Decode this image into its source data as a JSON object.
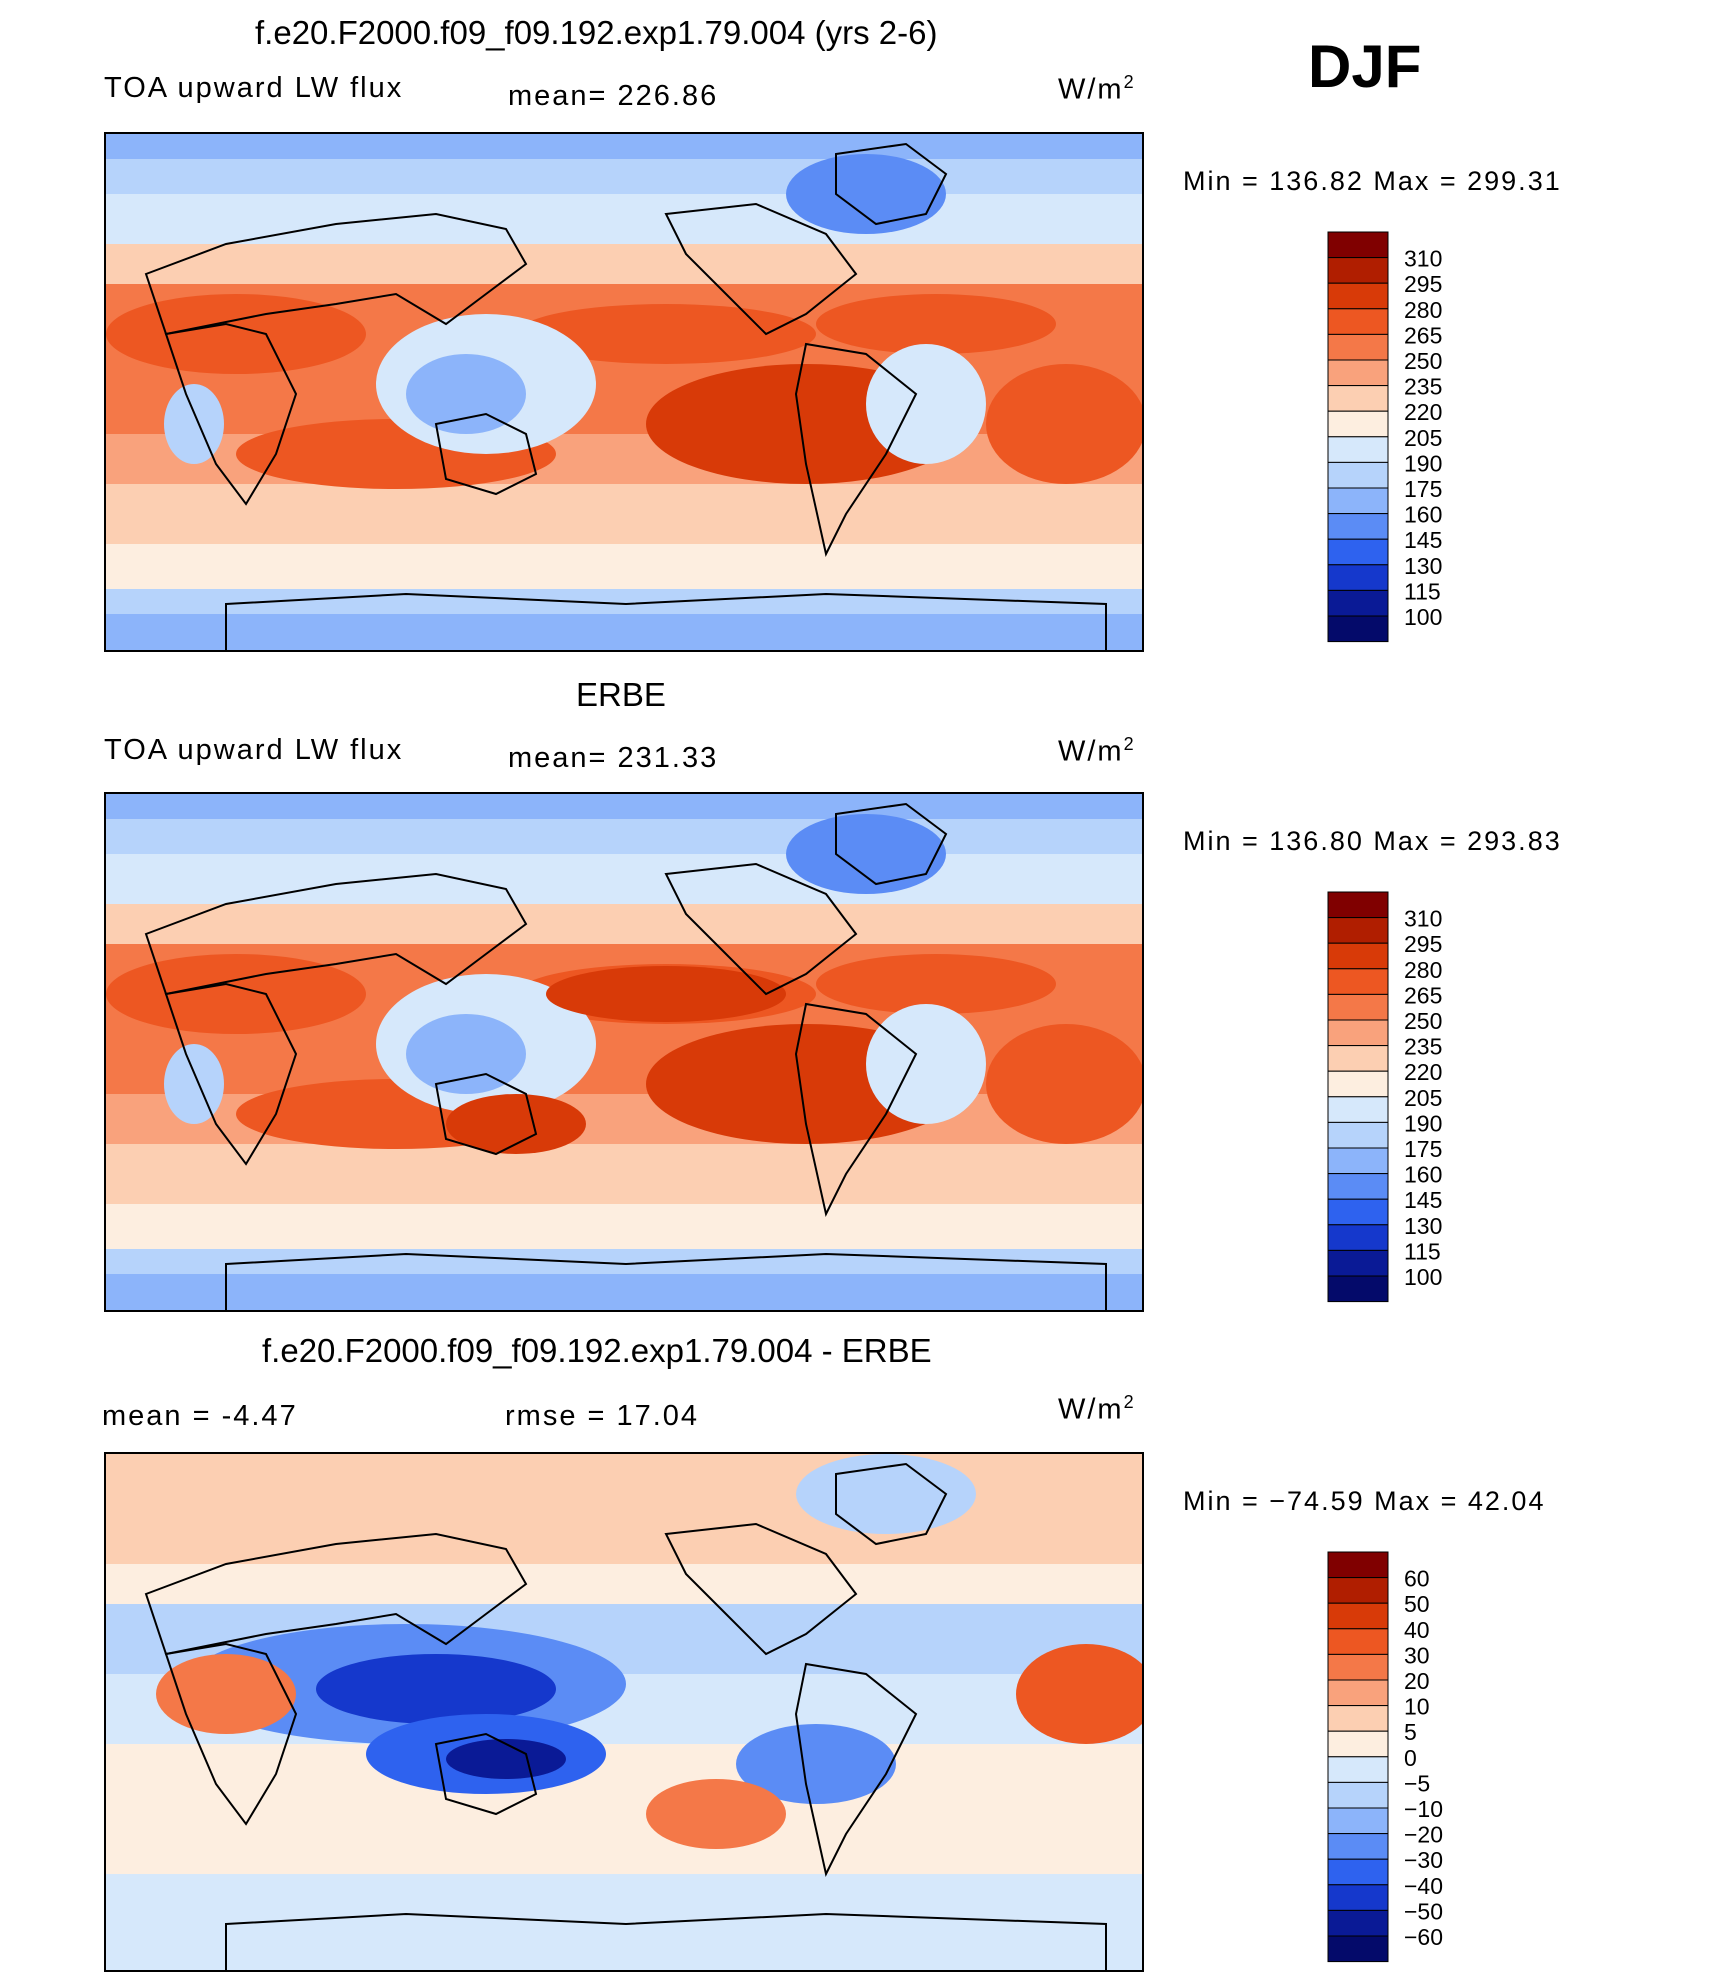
{
  "season": "DJF",
  "panels": [
    {
      "title": "f.e20.F2000.f09_f09.192.exp1.79.004 (yrs 2-6)",
      "left_label": "TOA upward LW flux",
      "mid_label": "mean= 226.86",
      "units_base": "W/m",
      "units_exp": "2",
      "minmax": "Min = 136.82 Max = 299.31",
      "kind": "abs"
    },
    {
      "title": "ERBE",
      "left_label": "TOA upward LW flux",
      "mid_label": "mean= 231.33",
      "units_base": "W/m",
      "units_exp": "2",
      "minmax": "Min = 136.80 Max = 293.83",
      "kind": "abs"
    },
    {
      "title": "f.e20.F2000.f09_f09.192.exp1.79.004 - ERBE",
      "left_label": "mean = -4.47",
      "mid_label": "rmse = 17.04",
      "units_base": "W/m",
      "units_exp": "2",
      "minmax": "Min = −74.59 Max = 42.04",
      "kind": "diff"
    }
  ],
  "chart_data": [
    {
      "type": "heatmap",
      "title": "f.e20.F2000.f09_f09.192.exp1.79.004 (yrs 2-6)",
      "variable": "TOA upward LW flux",
      "units": "W/m2",
      "mean": 226.86,
      "min": 136.82,
      "max": 299.31,
      "contour_levels": [
        "310",
        "295",
        "280",
        "265",
        "250",
        "235",
        "220",
        "205",
        "190",
        "175",
        "160",
        "145",
        "130",
        "115",
        "100"
      ]
    },
    {
      "type": "heatmap",
      "title": "ERBE",
      "variable": "TOA upward LW flux",
      "units": "W/m2",
      "mean": 231.33,
      "min": 136.8,
      "max": 293.83,
      "contour_levels": [
        "310",
        "295",
        "280",
        "265",
        "250",
        "235",
        "220",
        "205",
        "190",
        "175",
        "160",
        "145",
        "130",
        "115",
        "100"
      ]
    },
    {
      "type": "heatmap",
      "title": "f.e20.F2000.f09_f09.192.exp1.79.004 - ERBE",
      "units": "W/m2",
      "mean": -4.47,
      "rmse": 17.04,
      "min": -74.59,
      "max": 42.04,
      "contour_levels": [
        "60",
        "50",
        "40",
        "30",
        "20",
        "10",
        "5",
        "0",
        "−5",
        "−10",
        "−20",
        "−30",
        "−40",
        "−50",
        "−60"
      ]
    }
  ],
  "palette": [
    "#800000",
    "#b01e00",
    "#d83a08",
    "#ed5722",
    "#f47848",
    "#f9a27c",
    "#fccfb2",
    "#fdeee0",
    "#d6e8fb",
    "#b6d3fb",
    "#8cb4fa",
    "#5b8cf5",
    "#2e62ef",
    "#1538cc",
    "#0a1a96",
    "#040a6a"
  ],
  "ocean_color": "#fdeee0",
  "land_line_color": "#000000"
}
